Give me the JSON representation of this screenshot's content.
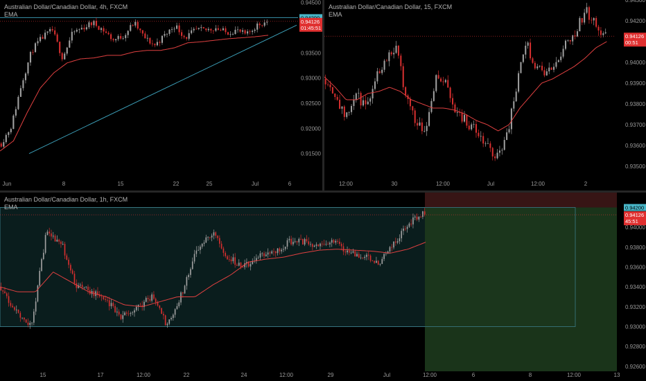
{
  "colors": {
    "background": "#000000",
    "up": "#a0a0a0",
    "down": "#d62f2f",
    "ema": "#e04040",
    "trendline": "#3c9fb8",
    "grid_text": "#9a9a9a",
    "price_tag": "#e03030",
    "level_tag": "#49b7c9",
    "profit_zone": "#1d3a1d",
    "loss_zone": "#3a1616"
  },
  "panels": [
    {
      "id": "4h",
      "title": "Australian Dollar/Canadian Dollar, 4h, FXCM",
      "indicator": "EMA",
      "price_axis": [
        "0.94500",
        "0.94000",
        "0.93500",
        "0.93000",
        "0.92500",
        "0.92000",
        "0.91500"
      ],
      "time_axis": [
        "Jun",
        "8",
        "15",
        "22",
        "25",
        "Jul",
        "6"
      ],
      "tags": {
        "level": "0.94200",
        "price": "0.94126",
        "countdown": "01:45:51"
      }
    },
    {
      "id": "15",
      "title": "Australian Dollar/Canadian Dollar, 15, FXCM",
      "indicator": "EMA",
      "price_axis": [
        "0.94300",
        "0.94200",
        "0.94100",
        "0.94000",
        "0.93900",
        "0.93800",
        "0.93700",
        "0.93600",
        "0.93500"
      ],
      "time_axis": [
        "12:00",
        "30",
        "12:00",
        "Jul",
        "12:00",
        "2"
      ],
      "tags": {
        "price": "0.94126",
        "countdown": "00:51"
      }
    },
    {
      "id": "1h",
      "title": "Australian Dollar/Canadian Dollar, 1h, FXCM",
      "indicator": "EMA",
      "price_axis": [
        "0.94000",
        "0.93800",
        "0.93600",
        "0.93400",
        "0.93200",
        "0.93000",
        "0.92800",
        "0.92600"
      ],
      "time_axis": [
        "15",
        "17",
        "12:00",
        "22",
        "24",
        "12:00",
        "29",
        "Jul",
        "12:00",
        "6",
        "8",
        "12:00",
        "13"
      ],
      "tags": {
        "level": "0.94200",
        "price": "0.94126",
        "countdown": "45:51"
      }
    }
  ],
  "chart_data": [
    {
      "type": "candlestick",
      "title": "Australian Dollar/Canadian Dollar, 4h, FXCM",
      "series": [
        {
          "name": "EMA"
        }
      ],
      "y_range": [
        0.91,
        0.9455
      ],
      "x_ticks": [
        "Jun",
        "8",
        "15",
        "22",
        "25",
        "Jul",
        "6"
      ],
      "anchors": [
        0.917,
        0.9205,
        0.929,
        0.9355,
        0.938,
        0.9395,
        0.934,
        0.939,
        0.94,
        0.941,
        0.9395,
        0.9375,
        0.9385,
        0.941,
        0.938,
        0.9365,
        0.9385,
        0.9405,
        0.938,
        0.9395,
        0.9395,
        0.94,
        0.939,
        0.9395,
        0.9385,
        0.9405,
        0.9412
      ],
      "ema_anchors": [
        0.9155,
        0.9175,
        0.923,
        0.928,
        0.931,
        0.933,
        0.9338,
        0.934,
        0.9345,
        0.9345,
        0.9352,
        0.9355,
        0.9355,
        0.936,
        0.937,
        0.9372,
        0.9375,
        0.9378,
        0.938,
        0.9382,
        0.9385
      ],
      "levels": [
        {
          "label": "0.94200",
          "value": 0.942
        }
      ],
      "trendline": {
        "from": [
          "Jun",
          0.915
        ],
        "to": [
          "6",
          0.9405
        ]
      },
      "last_price": 0.94126
    },
    {
      "type": "candlestick",
      "title": "Australian Dollar/Canadian Dollar, 15, FXCM",
      "series": [
        {
          "name": "EMA"
        }
      ],
      "y_range": [
        0.9344,
        0.943
      ],
      "x_ticks": [
        "12:00",
        "30",
        "12:00",
        "Jul",
        "12:00",
        "2"
      ],
      "anchors": [
        0.9392,
        0.9385,
        0.9372,
        0.9385,
        0.9378,
        0.9393,
        0.9402,
        0.9408,
        0.9385,
        0.9372,
        0.9368,
        0.9393,
        0.939,
        0.9377,
        0.9372,
        0.9367,
        0.936,
        0.9355,
        0.9362,
        0.9385,
        0.941,
        0.9398,
        0.9395,
        0.9398,
        0.941,
        0.9415,
        0.9425,
        0.9418,
        0.9412
      ],
      "ema_anchors": [
        0.9393,
        0.9388,
        0.9382,
        0.9382,
        0.9385,
        0.9386,
        0.9388,
        0.9386,
        0.9382,
        0.938,
        0.9378,
        0.9378,
        0.9377,
        0.9375,
        0.9372,
        0.937,
        0.9367,
        0.937,
        0.9378,
        0.9384,
        0.939,
        0.9392,
        0.9395,
        0.9398,
        0.9402,
        0.9407,
        0.941
      ],
      "last_price": 0.94126
    },
    {
      "type": "candlestick",
      "title": "Australian Dollar/Canadian Dollar, 1h, FXCM",
      "series": [
        {
          "name": "EMA"
        }
      ],
      "y_range": [
        0.9255,
        0.9435
      ],
      "x_ticks": [
        "15",
        "17",
        "12:00",
        "22",
        "24",
        "12:00",
        "29",
        "Jul",
        "12:00",
        "6",
        "8",
        "12:00",
        "13"
      ],
      "anchors": [
        0.934,
        0.9315,
        0.93,
        0.9395,
        0.9385,
        0.934,
        0.9335,
        0.9325,
        0.931,
        0.932,
        0.933,
        0.93,
        0.9335,
        0.938,
        0.9395,
        0.937,
        0.936,
        0.937,
        0.9375,
        0.9385,
        0.9385,
        0.938,
        0.9385,
        0.9375,
        0.937,
        0.9365,
        0.9385,
        0.9405,
        0.9415
      ],
      "ema_anchors": [
        0.934,
        0.9335,
        0.9335,
        0.9355,
        0.9345,
        0.9335,
        0.933,
        0.9322,
        0.932,
        0.9325,
        0.933,
        0.933,
        0.9342,
        0.9352,
        0.9365,
        0.9368,
        0.937,
        0.9374,
        0.9377,
        0.9378,
        0.9377,
        0.9376,
        0.9374,
        0.9378,
        0.9385
      ],
      "position": {
        "entry": 0.942,
        "target": 0.93,
        "stop": 0.9435
      },
      "last_price": 0.94126
    }
  ]
}
